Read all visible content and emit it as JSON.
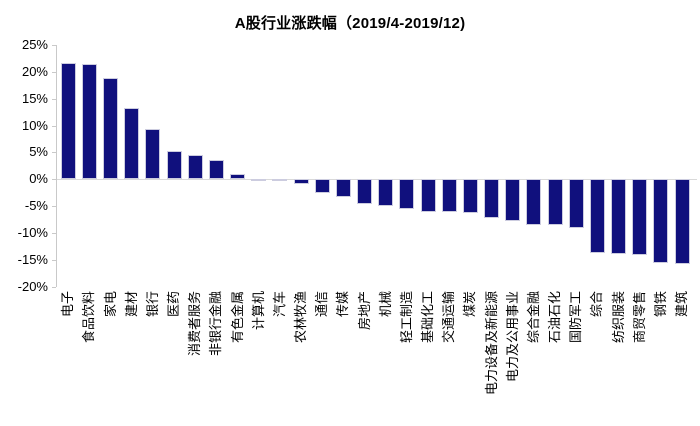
{
  "title": "A股行业涨跌幅（2019/4-2019/12)",
  "colors": {
    "bar": "#10107d",
    "bar_border": "#ccccdf",
    "axis": "#c9c9c9",
    "zero_line": "#d9d9d9",
    "text": "#000000",
    "background": "#ffffff"
  },
  "chart_data": {
    "type": "bar",
    "title": "A股行业涨跌幅（2019/4-2019/12)",
    "xlabel": "",
    "ylabel": "",
    "ylim": [
      -20,
      25
    ],
    "ytick_labels": [
      "25%",
      "20%",
      "15%",
      "10%",
      "5%",
      "0%",
      "-5%",
      "-10%",
      "-15%",
      "-20%"
    ],
    "grid": "zero-line-only",
    "legend": "none",
    "bar_color": "#10107d",
    "categories": [
      "电子",
      "食品饮料",
      "家电",
      "建材",
      "银行",
      "医药",
      "消费者服务",
      "非银行金融",
      "有色金属",
      "计算机",
      "汽车",
      "农林牧渔",
      "通信",
      "传媒",
      "房地产",
      "机械",
      "轻工制造",
      "基础化工",
      "交通运输",
      "煤炭",
      "电力设备及新能源",
      "电力及公用事业",
      "综合金融",
      "石油石化",
      "国防军工",
      "综合",
      "纺织服装",
      "商贸零售",
      "钢铁",
      "建筑"
    ],
    "values": [
      21.7,
      21.4,
      18.8,
      13.3,
      9.3,
      5.3,
      4.6,
      3.6,
      1.0,
      -0.2,
      -0.4,
      -0.8,
      -2.6,
      -3.3,
      -4.6,
      -5.0,
      -5.5,
      -6.0,
      -6.0,
      -6.2,
      -7.3,
      -7.8,
      -8.6,
      -8.6,
      -9.0,
      -13.8,
      -14.0,
      -14.1,
      -15.5,
      -15.8
    ]
  }
}
